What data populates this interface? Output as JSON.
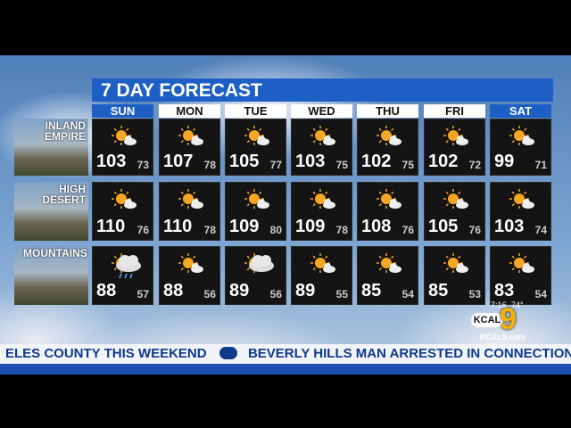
{
  "title": "7 DAY FORECAST",
  "days": [
    "SUN",
    "MON",
    "TUE",
    "WED",
    "THU",
    "FRI",
    "SAT"
  ],
  "regions": [
    {
      "name": "INLAND EMPIRE",
      "highs": [
        103,
        107,
        105,
        103,
        102,
        102,
        99
      ],
      "lows": [
        73,
        78,
        77,
        75,
        75,
        72,
        71
      ]
    },
    {
      "name": "HIGH DESERT",
      "highs": [
        110,
        110,
        109,
        109,
        108,
        105,
        103
      ],
      "lows": [
        76,
        78,
        80,
        78,
        76,
        76,
        74
      ]
    },
    {
      "name": "MOUNTAINS",
      "highs": [
        88,
        88,
        89,
        89,
        85,
        85,
        83
      ],
      "lows": [
        57,
        56,
        56,
        55,
        54,
        53,
        54
      ]
    }
  ],
  "ticker": [
    "ELES COUNTY THIS WEEKEND",
    "BEVERLY HILLS MAN ARRESTED IN CONNECTION WITH"
  ],
  "logo": {
    "name": "KCAL",
    "number": "9",
    "site": "KCAL9.com"
  },
  "clock": {
    "time": "7:16",
    "temperature": "74°"
  }
}
